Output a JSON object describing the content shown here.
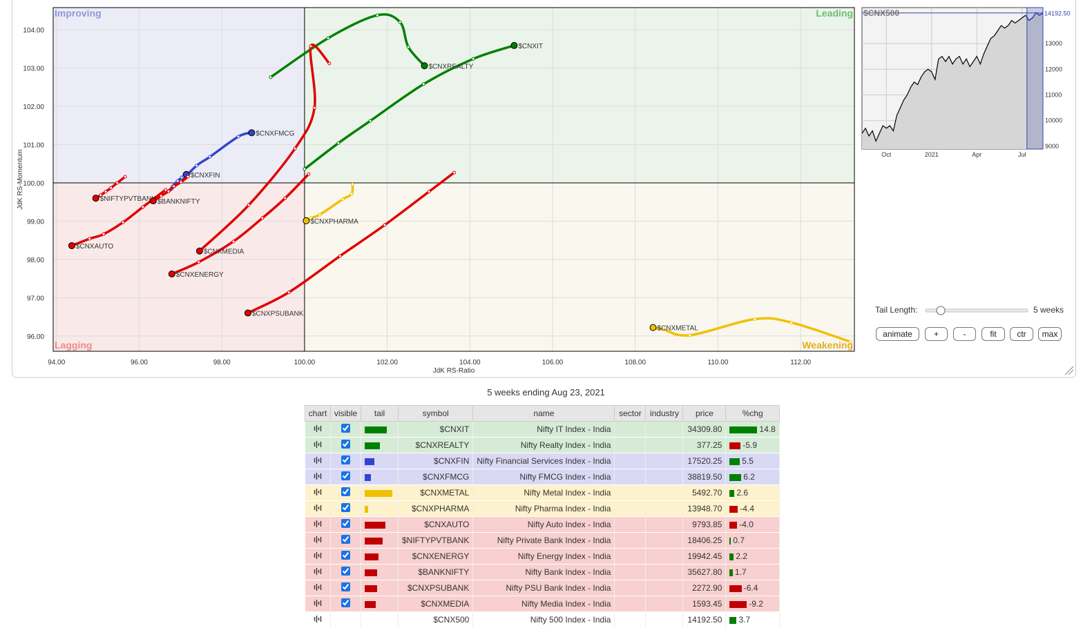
{
  "chart_data": [
    {
      "type": "scatter",
      "xlabel": "JdK RS-Ratio",
      "ylabel": "JdK RS-Momentum",
      "xlim": [
        93.92,
        113.3
      ],
      "ylim": [
        95.6,
        104.58
      ],
      "xticks": [
        {
          "value": 94,
          "label": "94.00"
        },
        {
          "value": 96,
          "label": "96.00"
        },
        {
          "value": 98,
          "label": "98.00"
        },
        {
          "value": 100,
          "label": "100.00"
        },
        {
          "value": 102,
          "label": "102.00"
        },
        {
          "value": 104,
          "label": "104.00"
        },
        {
          "value": 106,
          "label": "106.00"
        },
        {
          "value": 108,
          "label": "108.00"
        },
        {
          "value": 110,
          "label": "110.00"
        },
        {
          "value": 112,
          "label": "112.00"
        }
      ],
      "yticks": [
        {
          "value": 96,
          "label": "96.00"
        },
        {
          "value": 97,
          "label": "97.00"
        },
        {
          "value": 98,
          "label": "98.00"
        },
        {
          "value": 99,
          "label": "99.00"
        },
        {
          "value": 100,
          "label": "100.00"
        },
        {
          "value": 101,
          "label": "101.00"
        },
        {
          "value": 102,
          "label": "102.00"
        },
        {
          "value": 103,
          "label": "103.00"
        },
        {
          "value": 104,
          "label": "104.00"
        }
      ],
      "crosshair": {
        "x": 100,
        "y": 100
      },
      "quadrants": [
        {
          "label": "Improving",
          "corner": "top-left",
          "color": "#ececf7",
          "label_color": "#8f97d8"
        },
        {
          "label": "Leading",
          "corner": "top-right",
          "color": "#ebf4ea",
          "label_color": "#6cbf6c"
        },
        {
          "label": "Lagging",
          "corner": "bottom-left",
          "color": "#f9e9e9",
          "label_color": "#f08a8a"
        },
        {
          "label": "Weakening",
          "corner": "bottom-right",
          "color": "#f9f7ee",
          "label_color": "#e0b020"
        }
      ],
      "series": [
        {
          "name": "$CNXIT",
          "color": "#008000",
          "x": [
            100.0,
            100.82,
            101.59,
            102.88,
            104.08,
            105.07
          ],
          "values": [
            100.36,
            101.04,
            101.62,
            102.58,
            103.24,
            103.59
          ]
        },
        {
          "name": "$CNXREALTY",
          "color": "#008000",
          "x": [
            99.18,
            100.57,
            101.76,
            102.31,
            102.51,
            102.9
          ],
          "values": [
            102.76,
            103.78,
            104.38,
            104.2,
            103.55,
            103.06
          ]
        },
        {
          "name": "$CNXFMCG",
          "color": "#3344cc",
          "x": [
            96.78,
            97.01,
            97.39,
            97.71,
            98.4,
            98.72
          ],
          "values": [
            99.84,
            100.05,
            100.45,
            100.68,
            101.21,
            101.31
          ]
        },
        {
          "name": "$CNXFIN",
          "color": "#3344cc",
          "x": [
            96.73,
            96.81,
            96.93,
            97.03,
            97.08,
            97.14
          ],
          "values": [
            99.8,
            99.91,
            100.05,
            100.14,
            100.18,
            100.22
          ]
        },
        {
          "name": "$CNXPHARMA",
          "color": "#f0c000",
          "x": [
            101.16,
            101.14,
            100.92,
            100.37,
            100.15,
            100.04
          ],
          "values": [
            99.96,
            99.71,
            99.57,
            99.17,
            99.08,
            99.01
          ]
        },
        {
          "name": "$CNXMETAL",
          "color": "#f0c000",
          "x": [
            113.2,
            111.78,
            110.89,
            109.32,
            108.68,
            108.43
          ],
          "values": [
            95.85,
            96.35,
            96.44,
            96.02,
            96.17,
            96.22
          ]
        },
        {
          "name": "$CNXAUTO",
          "color": "#e00000",
          "x": [
            96.64,
            96.09,
            95.61,
            95.14,
            94.8,
            94.37
          ],
          "values": [
            99.82,
            99.37,
            98.97,
            98.66,
            98.54,
            98.36
          ]
        },
        {
          "name": "$NIFTYPVTBANK",
          "color": "#e00000",
          "x": [
            95.66,
            95.47,
            95.32,
            95.19,
            95.07,
            94.95
          ],
          "values": [
            100.16,
            100.0,
            99.87,
            99.77,
            99.68,
            99.6
          ]
        },
        {
          "name": "$CNXENERGY",
          "color": "#e00000",
          "x": [
            100.1,
            99.53,
            98.98,
            98.28,
            97.44,
            96.79
          ],
          "values": [
            100.23,
            99.6,
            99.08,
            98.47,
            97.93,
            97.62
          ]
        },
        {
          "name": "$BANKNIFTY",
          "color": "#e00000",
          "x": [
            97.18,
            97.01,
            96.84,
            96.71,
            96.53,
            96.34
          ],
          "values": [
            100.16,
            100.02,
            99.91,
            99.78,
            99.66,
            99.53
          ]
        },
        {
          "name": "$CNXPSUBANK",
          "color": "#e00000",
          "x": [
            103.62,
            103.01,
            101.94,
            100.86,
            99.62,
            98.63
          ],
          "values": [
            100.27,
            99.77,
            98.9,
            98.09,
            97.14,
            96.6
          ]
        },
        {
          "name": "$CNXMEDIA",
          "color": "#e00000",
          "x": [
            100.6,
            100.15,
            100.24,
            99.77,
            98.65,
            97.46
          ],
          "values": [
            103.12,
            103.57,
            101.96,
            100.9,
            99.42,
            98.22
          ]
        }
      ]
    },
    {
      "type": "line",
      "title": "$CNX500",
      "color": "#000000",
      "highlight_color": "#3344aa",
      "categories": [
        null,
        null,
        null,
        null,
        null,
        null,
        null,
        "Oct",
        null,
        null,
        null,
        null,
        null,
        null,
        null,
        null,
        null,
        null,
        null,
        null,
        "2021",
        null,
        null,
        null,
        null,
        null,
        null,
        null,
        null,
        null,
        null,
        null,
        null,
        "Apr",
        null,
        null,
        null,
        null,
        null,
        null,
        null,
        null,
        null,
        null,
        null,
        null,
        "Jul",
        null,
        null,
        null,
        null,
        null,
        null
      ],
      "values": [
        9500,
        9700,
        9400,
        9600,
        9200,
        9500,
        9800,
        9700,
        9800,
        9600,
        10200,
        10500,
        10800,
        11000,
        11300,
        11500,
        11400,
        11700,
        11900,
        12000,
        11900,
        11600,
        12400,
        12500,
        12300,
        12500,
        12200,
        12400,
        12500,
        12200,
        12400,
        12100,
        12300,
        12500,
        12200,
        12600,
        12900,
        13200,
        13300,
        13500,
        13700,
        13600,
        13700,
        13900,
        13800,
        13900,
        14000,
        14100,
        13900,
        14000,
        14200,
        14100,
        14192.5
      ],
      "ylim": [
        8890,
        14400
      ],
      "yticks": [
        9000,
        10000,
        11000,
        12000,
        13000
      ],
      "last_value": {
        "value": 14192.5,
        "label": "14192.50"
      }
    }
  ],
  "controls": {
    "tail_label": "Tail Length:",
    "tail_text": "5 weeks",
    "buttons": [
      "animate",
      "+",
      "-",
      "fit",
      "ctr",
      "max"
    ]
  },
  "table": {
    "caption": "5 weeks ending Aug 23, 2021",
    "columns": [
      "chart",
      "visible",
      "tail",
      "symbol",
      "name",
      "sector",
      "industry",
      "price",
      "%chg"
    ],
    "rows": [
      {
        "symbol": "$CNXIT",
        "name": "Nifty IT Index - India",
        "price": "34309.80",
        "chg": 14.8,
        "tail": 32,
        "color": "#008000",
        "background": "#d6ebd6",
        "visible": true
      },
      {
        "symbol": "$CNXREALTY",
        "name": "Nifty Realty Index - India",
        "price": "377.25",
        "chg": -5.9,
        "tail": 22,
        "color": "#008000",
        "background": "#d6ebd6",
        "visible": true
      },
      {
        "symbol": "$CNXFIN",
        "name": "Nifty Financial Services Index - India",
        "price": "17520.25",
        "chg": 5.5,
        "tail": 14,
        "color": "#3344cc",
        "background": "#d9d9f5",
        "visible": true
      },
      {
        "symbol": "$CNXFMCG",
        "name": "Nifty FMCG Index - India",
        "price": "38819.50",
        "chg": 6.2,
        "tail": 9,
        "color": "#3344cc",
        "background": "#d9d9f5",
        "visible": true
      },
      {
        "symbol": "$CNXMETAL",
        "name": "Nifty Metal Index - India",
        "price": "5492.70",
        "chg": 2.6,
        "tail": 40,
        "color": "#f0c000",
        "background": "#fdf2cc",
        "visible": true
      },
      {
        "symbol": "$CNXPHARMA",
        "name": "Nifty Pharma Index - India",
        "price": "13948.70",
        "chg": -4.4,
        "tail": 5,
        "color": "#f0c000",
        "background": "#fdf2cc",
        "visible": true
      },
      {
        "symbol": "$CNXAUTO",
        "name": "Nifty Auto Index - India",
        "price": "9793.85",
        "chg": {
          "value": -4,
          "label": "-4.0"
        },
        "tail": 30,
        "color": "#c00000",
        "background": "#f8d0d0",
        "visible": true
      },
      {
        "symbol": "$NIFTYPVTBANK",
        "name": "Nifty Private Bank Index - India",
        "price": "18406.25",
        "chg": 0.7,
        "tail": 26,
        "color": "#c00000",
        "background": "#f8d0d0",
        "visible": true
      },
      {
        "symbol": "$CNXENERGY",
        "name": "Nifty Energy Index - India",
        "price": "19942.45",
        "chg": 2.2,
        "tail": 20,
        "color": "#c00000",
        "background": "#f8d0d0",
        "visible": true
      },
      {
        "symbol": "$BANKNIFTY",
        "name": "Nifty Bank Index - India",
        "price": "35627.80",
        "chg": 1.7,
        "tail": 18,
        "color": "#c00000",
        "background": "#f8d0d0",
        "visible": true
      },
      {
        "symbol": "$CNXPSUBANK",
        "name": "Nifty PSU Bank Index - India",
        "price": "2272.90",
        "chg": -6.4,
        "tail": 18,
        "color": "#c00000",
        "background": "#f8d0d0",
        "visible": true
      },
      {
        "symbol": "$CNXMEDIA",
        "name": "Nifty Media Index - India",
        "price": "1593.45",
        "chg": -9.2,
        "tail": 16,
        "color": "#c00000",
        "background": "#f8d0d0",
        "visible": true
      },
      {
        "symbol": "$CNX500",
        "name": "Nifty 500 Index - India",
        "price": "14192.50",
        "chg": 3.7,
        "background": "#ffffff"
      }
    ]
  }
}
